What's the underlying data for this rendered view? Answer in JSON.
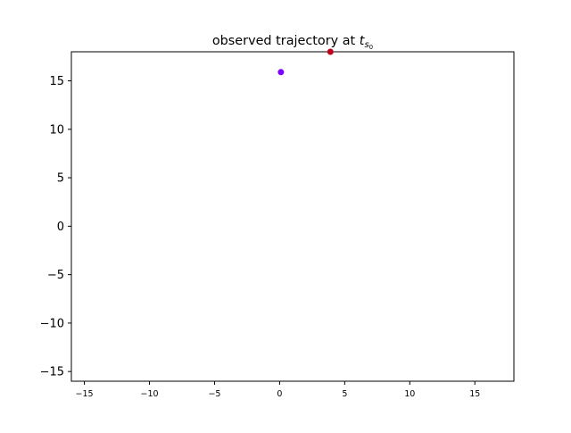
{
  "chart_data": {
    "type": "scatter",
    "title": "observed trajectory at ",
    "title_math": {
      "base": "t",
      "sub": "s",
      "subsub": "0"
    },
    "xlabel": "",
    "ylabel": "",
    "xlim": [
      -16,
      18
    ],
    "ylim": [
      -16,
      18
    ],
    "xticks": [
      -15,
      -10,
      -5,
      0,
      5,
      10,
      15
    ],
    "yticks": [
      -15,
      -10,
      -5,
      0,
      5,
      10,
      15
    ],
    "xtick_labels": [
      "−15",
      "−10",
      "−5",
      "0",
      "5",
      "10",
      "15"
    ],
    "ytick_labels": [
      "−15",
      "−10",
      "−5",
      "0",
      "5",
      "10",
      "15"
    ],
    "grid": false,
    "legend": false,
    "points": [
      {
        "x": 0.1,
        "y": 15.9,
        "color": "#7f00ff"
      },
      {
        "x": 3.9,
        "y": 18.0,
        "color": "#c0001a"
      }
    ]
  }
}
